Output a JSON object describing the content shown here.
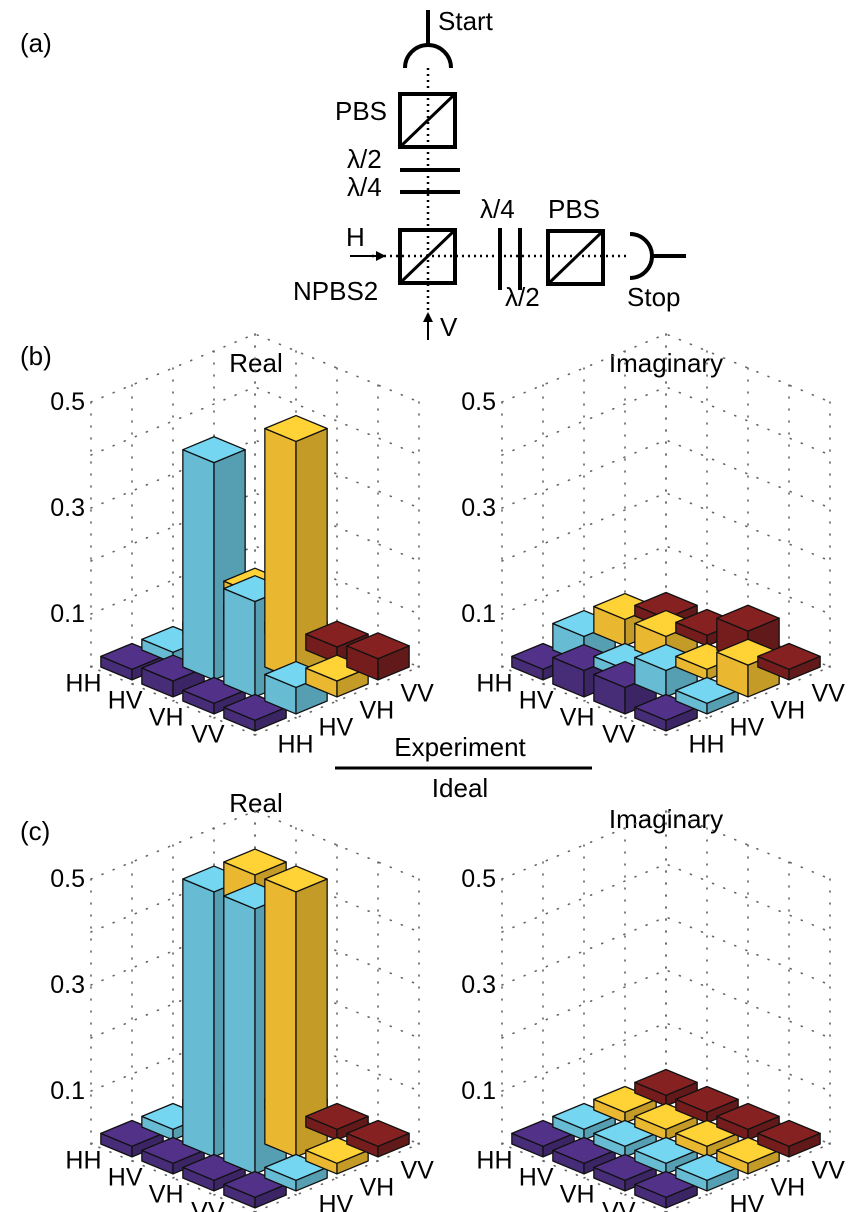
{
  "panel_labels": {
    "a": "(a)",
    "b": "(b)",
    "c": "(c)"
  },
  "setup": {
    "start": "Start",
    "stop": "Stop",
    "pbs_top": "PBS",
    "pbs_right": "PBS",
    "half_wave_top": "λ/2",
    "quarter_wave_top": "λ/4",
    "quarter_wave_right": "λ/4",
    "half_wave_right": "λ/2",
    "h_input": "H",
    "v_input": "V",
    "npbs": "NPBS2"
  },
  "divider": {
    "top": "Experiment",
    "bottom": "Ideal"
  },
  "colors": {
    "HH": "#4b2e7e",
    "HV": "#6cc6df",
    "VH": "#f6c232",
    "VV": "#7b1f1f"
  },
  "chart_data": [
    {
      "type": "bar3d",
      "title": "Real",
      "panel": "(b)",
      "row_labels": [
        "HH",
        "HV",
        "VH",
        "VV"
      ],
      "col_labels": [
        "HH",
        "HV",
        "VH",
        "VV"
      ],
      "zticks": [
        "0.1",
        "0.3",
        "0.5"
      ],
      "zlim": [
        0,
        0.5
      ],
      "values": [
        [
          0.02,
          0.02,
          0.01,
          0.02
        ],
        [
          0.03,
          0.41,
          0.13,
          0.02
        ],
        [
          0.01,
          0.18,
          0.45,
          0.03
        ],
        [
          0.02,
          0.05,
          0.03,
          0.04
        ]
      ]
    },
    {
      "type": "bar3d",
      "title": "Imaginary",
      "panel": "(b)",
      "row_labels": [
        "HH",
        "HV",
        "VH",
        "VV"
      ],
      "col_labels": [
        "HH",
        "HV",
        "VH",
        "VV"
      ],
      "zticks": [
        "0.1",
        "0.3",
        "0.5"
      ],
      "zlim": [
        0,
        0.5
      ],
      "values": [
        [
          0.0,
          0.05,
          0.05,
          0.01
        ],
        [
          0.05,
          0.02,
          0.05,
          0.02
        ],
        [
          0.05,
          0.05,
          0.02,
          0.06
        ],
        [
          0.01,
          0.02,
          0.06,
          0.01
        ]
      ]
    },
    {
      "type": "bar3d",
      "title": "Real",
      "panel": "(c)",
      "row_labels": [
        "HH",
        "HV",
        "VH",
        "VV"
      ],
      "col_labels": [
        "HH",
        "HV",
        "VH",
        "VV"
      ],
      "zticks": [
        "0.1",
        "0.3",
        "0.5"
      ],
      "zlim": [
        0,
        0.5
      ],
      "values": [
        [
          0,
          0,
          0,
          0
        ],
        [
          0,
          0.5,
          0.5,
          0
        ],
        [
          0,
          0.5,
          0.5,
          0
        ],
        [
          0,
          0,
          0,
          0
        ]
      ]
    },
    {
      "type": "bar3d",
      "title": "Imaginary",
      "panel": "(c)",
      "row_labels": [
        "HH",
        "HV",
        "VH",
        "VV"
      ],
      "col_labels": [
        "HH",
        "HV",
        "VH",
        "VV"
      ],
      "zticks": [
        "0.1",
        "0.3",
        "0.5"
      ],
      "zlim": [
        0,
        0.5
      ],
      "values": [
        [
          0,
          0,
          0,
          0
        ],
        [
          0,
          0,
          0,
          0
        ],
        [
          0,
          0,
          0,
          0
        ],
        [
          0,
          0,
          0,
          0
        ]
      ]
    }
  ]
}
